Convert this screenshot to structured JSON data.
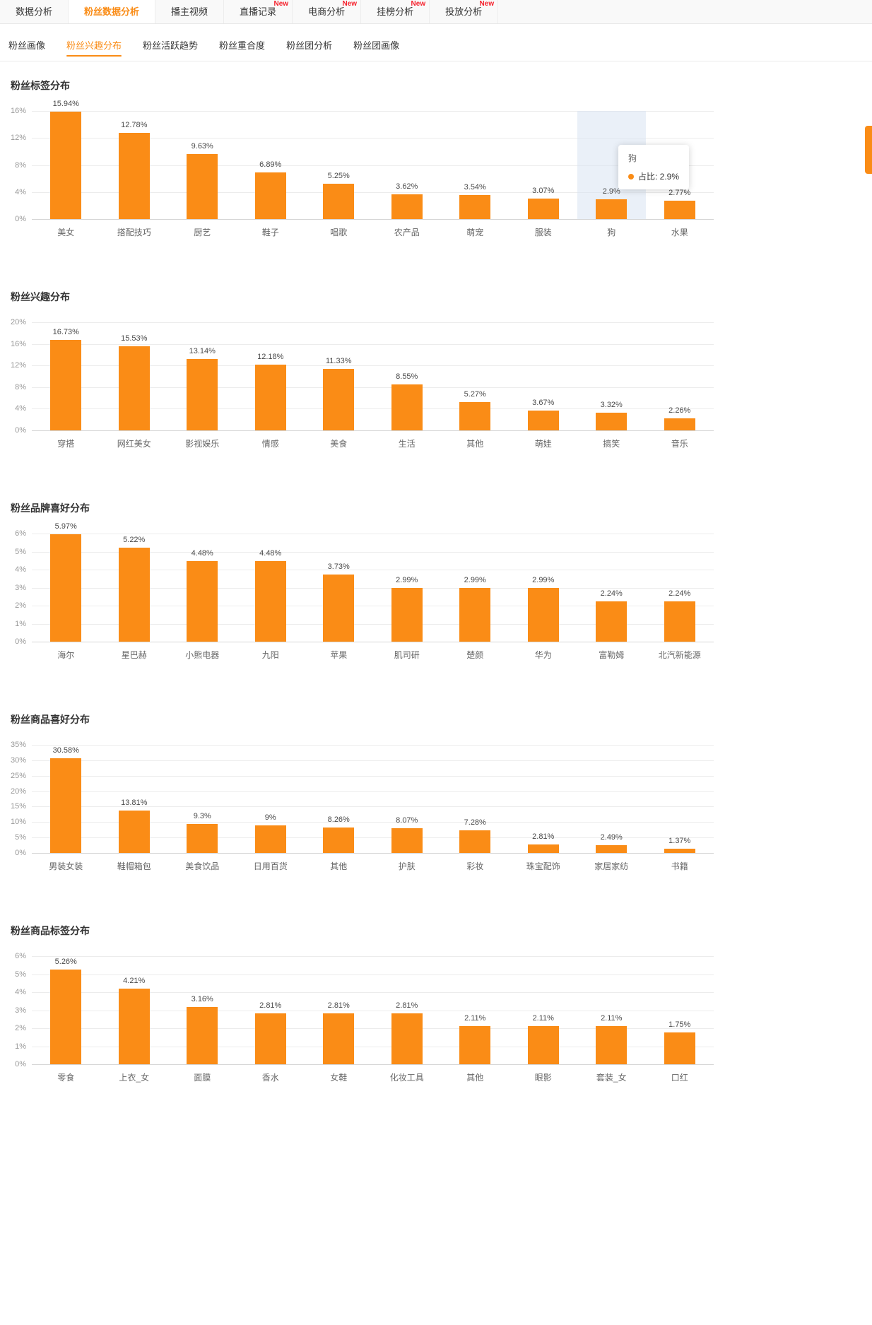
{
  "page": {
    "accent": "#fa8c16",
    "new_color": "#f5222d",
    "highlight_band": "#d8e3f2"
  },
  "top_nav": {
    "new_label": "New",
    "items": [
      {
        "label": "数据分析",
        "active": false,
        "new": false
      },
      {
        "label": "粉丝数据分析",
        "active": true,
        "new": false
      },
      {
        "label": "播主视频",
        "active": false,
        "new": false
      },
      {
        "label": "直播记录",
        "active": false,
        "new": true
      },
      {
        "label": "电商分析",
        "active": false,
        "new": true
      },
      {
        "label": "挂榜分析",
        "active": false,
        "new": true
      },
      {
        "label": "投放分析",
        "active": false,
        "new": true
      }
    ]
  },
  "sub_nav": {
    "items": [
      {
        "label": "粉丝画像",
        "active": false
      },
      {
        "label": "粉丝兴趣分布",
        "active": true
      },
      {
        "label": "粉丝活跃趋势",
        "active": false
      },
      {
        "label": "粉丝重合度",
        "active": false
      },
      {
        "label": "粉丝团分析",
        "active": false
      },
      {
        "label": "粉丝团画像",
        "active": false
      }
    ]
  },
  "chart_data": [
    {
      "type": "bar",
      "title": "粉丝标签分布",
      "categories": [
        "美女",
        "搭配技巧",
        "厨艺",
        "鞋子",
        "唱歌",
        "农产品",
        "萌宠",
        "服装",
        "狗",
        "水果"
      ],
      "values": [
        15.94,
        12.78,
        9.63,
        6.89,
        5.25,
        3.62,
        3.54,
        3.07,
        2.9,
        2.77
      ],
      "value_labels": [
        "15.94%",
        "12.78%",
        "9.63%",
        "6.89%",
        "5.25%",
        "3.62%",
        "3.54%",
        "3.07%",
        "2.9%",
        "2.77%"
      ],
      "ylim": [
        0,
        16
      ],
      "ytick_step": 4,
      "ytick_suffix": "%",
      "highlight_index": 8,
      "tooltip": {
        "title": "狗",
        "label": "占比",
        "value": "2.9%"
      }
    },
    {
      "type": "bar",
      "title": "粉丝兴趣分布",
      "categories": [
        "穿搭",
        "网红美女",
        "影视娱乐",
        "情感",
        "美食",
        "生活",
        "其他",
        "萌娃",
        "搞笑",
        "音乐"
      ],
      "values": [
        16.73,
        15.53,
        13.14,
        12.18,
        11.33,
        8.55,
        5.27,
        3.67,
        3.32,
        2.26
      ],
      "value_labels": [
        "16.73%",
        "15.53%",
        "13.14%",
        "12.18%",
        "11.33%",
        "8.55%",
        "5.27%",
        "3.67%",
        "3.32%",
        "2.26%"
      ],
      "ylim": [
        0,
        20
      ],
      "ytick_step": 4,
      "ytick_suffix": "%"
    },
    {
      "type": "bar",
      "title": "粉丝品牌喜好分布",
      "categories": [
        "海尔",
        "星巴赫",
        "小熊电器",
        "九阳",
        "苹果",
        "肌司研",
        "楚颜",
        "华为",
        "富勒姆",
        "北汽新能源"
      ],
      "values": [
        5.97,
        5.22,
        4.48,
        4.48,
        3.73,
        2.99,
        2.99,
        2.99,
        2.24,
        2.24
      ],
      "value_labels": [
        "5.97%",
        "5.22%",
        "4.48%",
        "4.48%",
        "3.73%",
        "2.99%",
        "2.99%",
        "2.99%",
        "2.24%",
        "2.24%"
      ],
      "ylim": [
        0,
        6
      ],
      "ytick_step": 1,
      "ytick_suffix": "%"
    },
    {
      "type": "bar",
      "title": "粉丝商品喜好分布",
      "categories": [
        "男装女装",
        "鞋帽箱包",
        "美食饮品",
        "日用百货",
        "其他",
        "护肤",
        "彩妆",
        "珠宝配饰",
        "家居家纺",
        "书籍"
      ],
      "values": [
        30.58,
        13.81,
        9.3,
        9,
        8.26,
        8.07,
        7.28,
        2.81,
        2.49,
        1.37
      ],
      "value_labels": [
        "30.58%",
        "13.81%",
        "9.3%",
        "9%",
        "8.26%",
        "8.07%",
        "7.28%",
        "2.81%",
        "2.49%",
        "1.37%"
      ],
      "ylim": [
        0,
        35
      ],
      "ytick_step": 5,
      "ytick_suffix": "%"
    },
    {
      "type": "bar",
      "title": "粉丝商品标签分布",
      "categories": [
        "零食",
        "上衣_女",
        "面膜",
        "香水",
        "女鞋",
        "化妆工具",
        "其他",
        "眼影",
        "套装_女",
        "口红"
      ],
      "values": [
        5.26,
        4.21,
        3.16,
        2.81,
        2.81,
        2.81,
        2.11,
        2.11,
        2.11,
        1.75
      ],
      "value_labels": [
        "5.26%",
        "4.21%",
        "3.16%",
        "2.81%",
        "2.81%",
        "2.81%",
        "2.11%",
        "2.11%",
        "2.11%",
        "1.75%"
      ],
      "ylim": [
        0,
        6
      ],
      "ytick_step": 1,
      "ytick_suffix": "%"
    }
  ]
}
